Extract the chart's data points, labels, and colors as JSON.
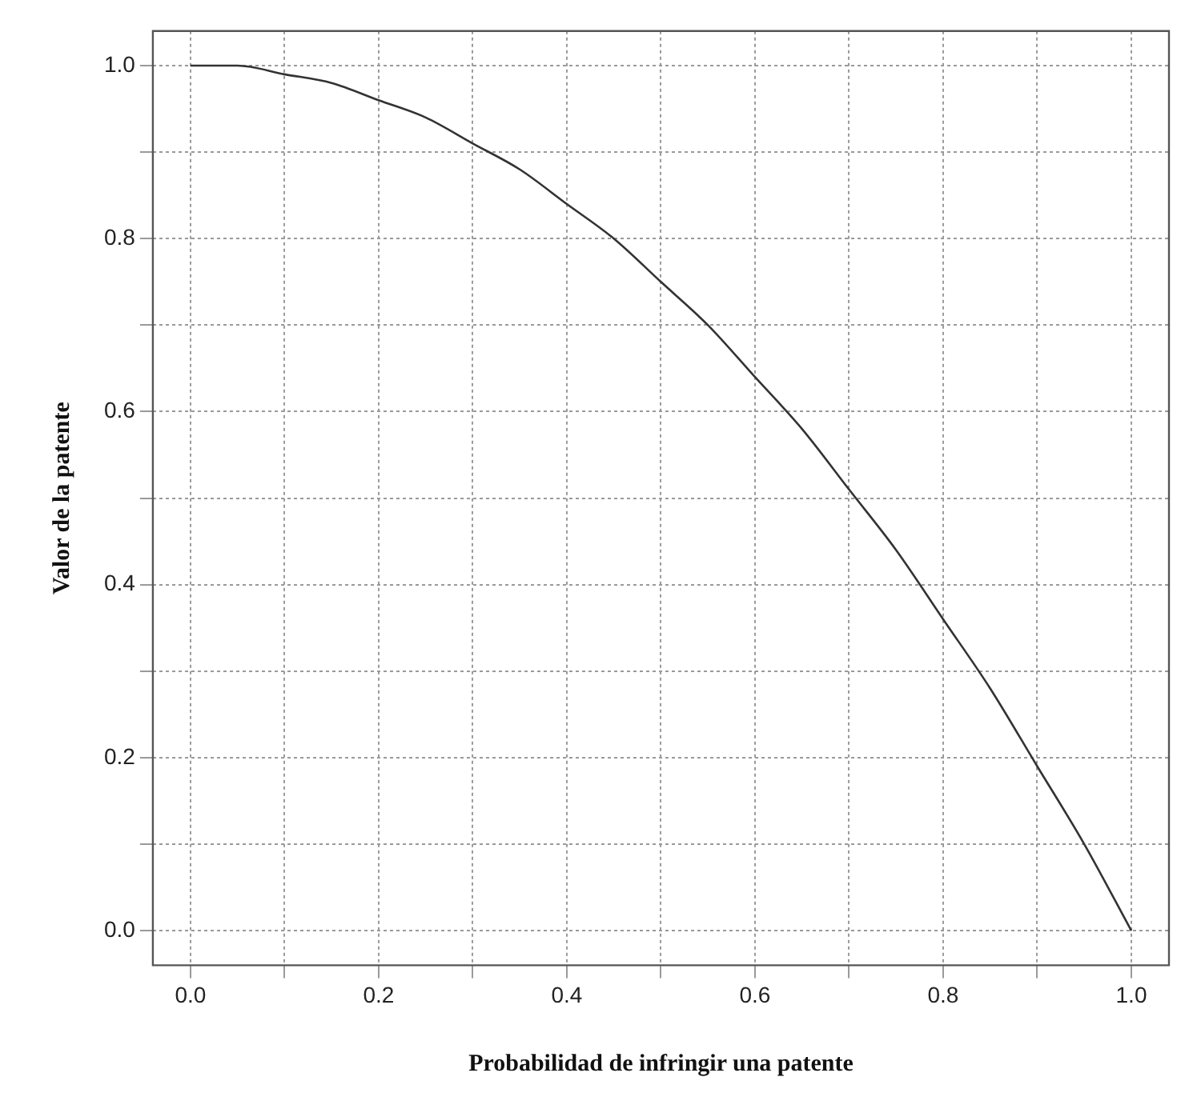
{
  "chart_data": {
    "type": "line",
    "xlabel": "Probabilidad de infringir una patente",
    "ylabel": "Valor de la patente",
    "x": [
      0,
      0.05,
      0.1,
      0.15,
      0.2,
      0.25,
      0.3,
      0.35,
      0.4,
      0.45,
      0.5,
      0.55,
      0.6,
      0.65,
      0.7,
      0.75,
      0.8,
      0.85,
      0.9,
      0.95,
      1
    ],
    "series": [
      {
        "color": "#333333",
        "values": [
          1.0,
          1.0,
          0.99,
          0.98,
          0.96,
          0.94,
          0.91,
          0.88,
          0.84,
          0.8,
          0.75,
          0.7,
          0.64,
          0.58,
          0.51,
          0.44,
          0.36,
          0.28,
          0.19,
          0.1,
          0.0
        ]
      }
    ],
    "xlim": [
      -0.04,
      1.04
    ],
    "ylim": [
      -0.04,
      1.04
    ],
    "xticks": [
      {
        "value": 0,
        "label": "0.0"
      },
      {
        "value": 0.1,
        "label": null
      },
      0.2,
      {
        "value": 0.3,
        "label": null
      },
      0.4,
      {
        "value": 0.5,
        "label": null
      },
      0.6,
      {
        "value": 0.7,
        "label": null
      },
      0.8,
      {
        "value": 0.9,
        "label": null
      },
      {
        "value": 1,
        "label": "1.0"
      }
    ],
    "yticks": [
      {
        "value": 0,
        "label": "0.0"
      },
      {
        "value": 0.1,
        "label": null
      },
      0.2,
      {
        "value": 0.3,
        "label": null
      },
      0.4,
      {
        "value": 0.5,
        "label": null
      },
      0.6,
      {
        "value": 0.7,
        "label": null
      },
      0.8,
      {
        "value": 0.9,
        "label": null
      },
      {
        "value": 1,
        "label": "1.0"
      }
    ],
    "grid": true,
    "legend": false,
    "marker": "none",
    "line_style": "solid"
  }
}
